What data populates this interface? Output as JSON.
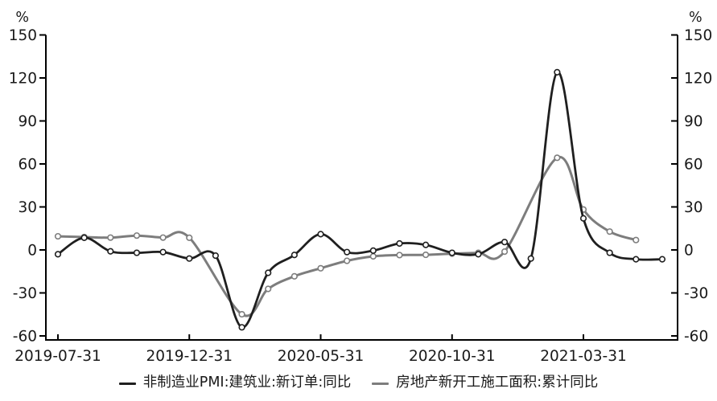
{
  "page": {
    "background": "#ffffff"
  },
  "chart_data": {
    "type": "line",
    "title": "",
    "y_axis_unit": "%",
    "ylim": [
      -60,
      150
    ],
    "y_ticks": [
      150,
      120,
      90,
      60,
      30,
      0,
      -30,
      -60
    ],
    "grid": false,
    "legend_position": "bottom",
    "marker": "open-circle",
    "x": [
      "2019-07-31",
      "2019-08-31",
      "2019-09-30",
      "2019-10-31",
      "2019-11-30",
      "2019-12-31",
      "2020-01-31",
      "2020-02-29",
      "2020-03-31",
      "2020-04-30",
      "2020-05-31",
      "2020-06-30",
      "2020-07-31",
      "2020-08-31",
      "2020-09-30",
      "2020-10-31",
      "2020-11-30",
      "2020-12-31",
      "2021-01-31",
      "2021-02-28",
      "2021-03-31",
      "2021-04-30",
      "2021-05-31",
      "2021-06-30"
    ],
    "x_tick_labels": [
      "2019-07-31",
      "2019-12-31",
      "2020-05-31",
      "2020-10-31",
      "2021-03-31"
    ],
    "x_tick_indices": [
      0,
      5,
      10,
      15,
      20
    ],
    "series": [
      {
        "name": "非制造业PMI:建筑业:新订单:同比",
        "color": "#1f1f1f",
        "values": [
          -3,
          8.5,
          -1,
          -2,
          -1.5,
          -6,
          -4,
          -54,
          -16,
          -3.5,
          11,
          -1.5,
          -0.5,
          4.5,
          3.5,
          -2,
          -3,
          5.5,
          -6,
          124,
          22,
          -2,
          -6.5,
          -6.5
        ]
      },
      {
        "name": "房地产新开工施工面积:累计同比",
        "color": "#7d7d7d",
        "values": [
          9.5,
          9,
          8.6,
          10,
          8.6,
          8.5,
          null,
          -44.9,
          -27.2,
          -18.4,
          -12.8,
          -7.6,
          -4.5,
          -3.6,
          -3.4,
          -2.6,
          -2,
          -1.2,
          null,
          64.3,
          28.2,
          12.8,
          6.9,
          null
        ]
      }
    ]
  }
}
